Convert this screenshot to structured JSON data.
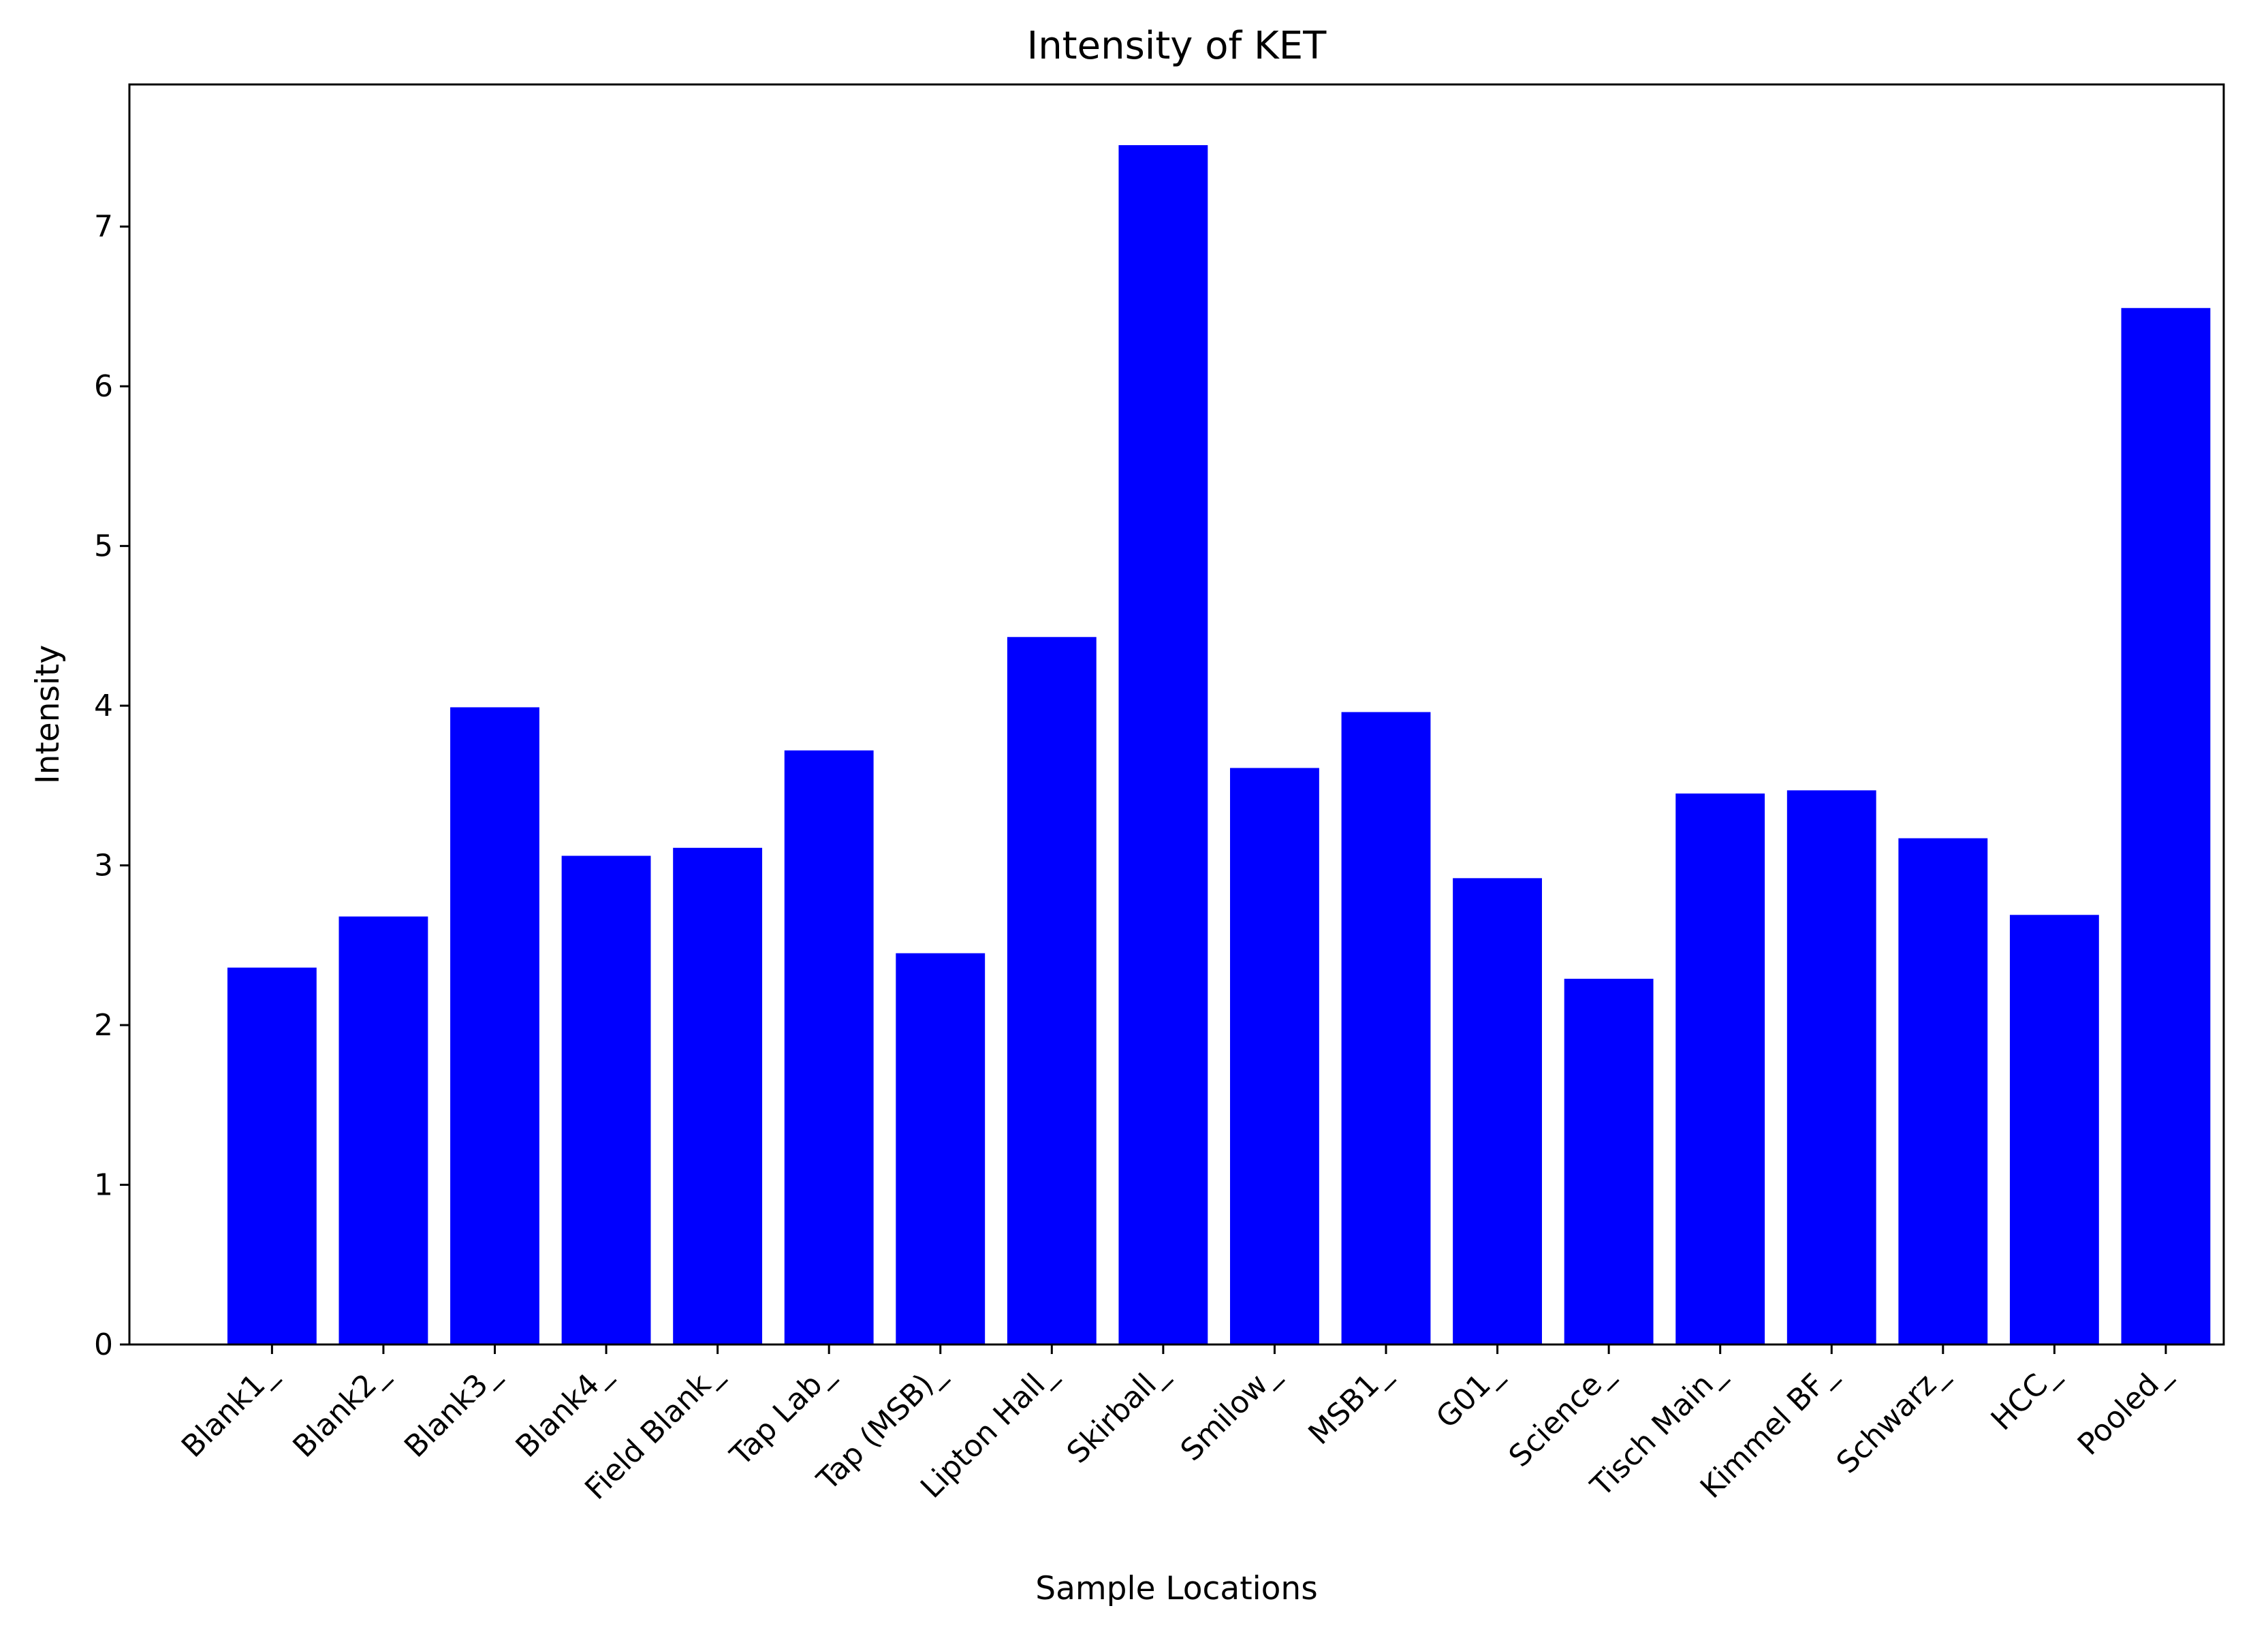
{
  "chart_data": {
    "type": "bar",
    "title": "Intensity of KET",
    "xlabel": "Sample Locations",
    "ylabel": "Intensity",
    "categories": [
      "Blank1_",
      "Blank2_",
      "Blank3_",
      "Blank4_",
      "Field Blank_",
      "Tap Lab_",
      "Tap (MSB)_",
      "Lipton Hall_",
      "Skirball_",
      "Smilow_",
      "MSB1_",
      "G01_",
      "Science_",
      "Tisch Main_",
      "Kimmel BF_",
      "Schwarz_",
      "HCC_",
      "Pooled_"
    ],
    "values": [
      2.36,
      2.68,
      3.99,
      3.06,
      3.11,
      3.72,
      2.45,
      4.43,
      7.51,
      3.61,
      3.96,
      2.92,
      2.29,
      3.45,
      3.47,
      3.17,
      2.69,
      6.49
    ],
    "yticks": [
      "0",
      "1",
      "2",
      "3",
      "4",
      "5",
      "6",
      "7"
    ],
    "ylim": [
      0,
      7.89
    ],
    "bar_color": "#0000ff",
    "grid": false,
    "legend": false
  }
}
